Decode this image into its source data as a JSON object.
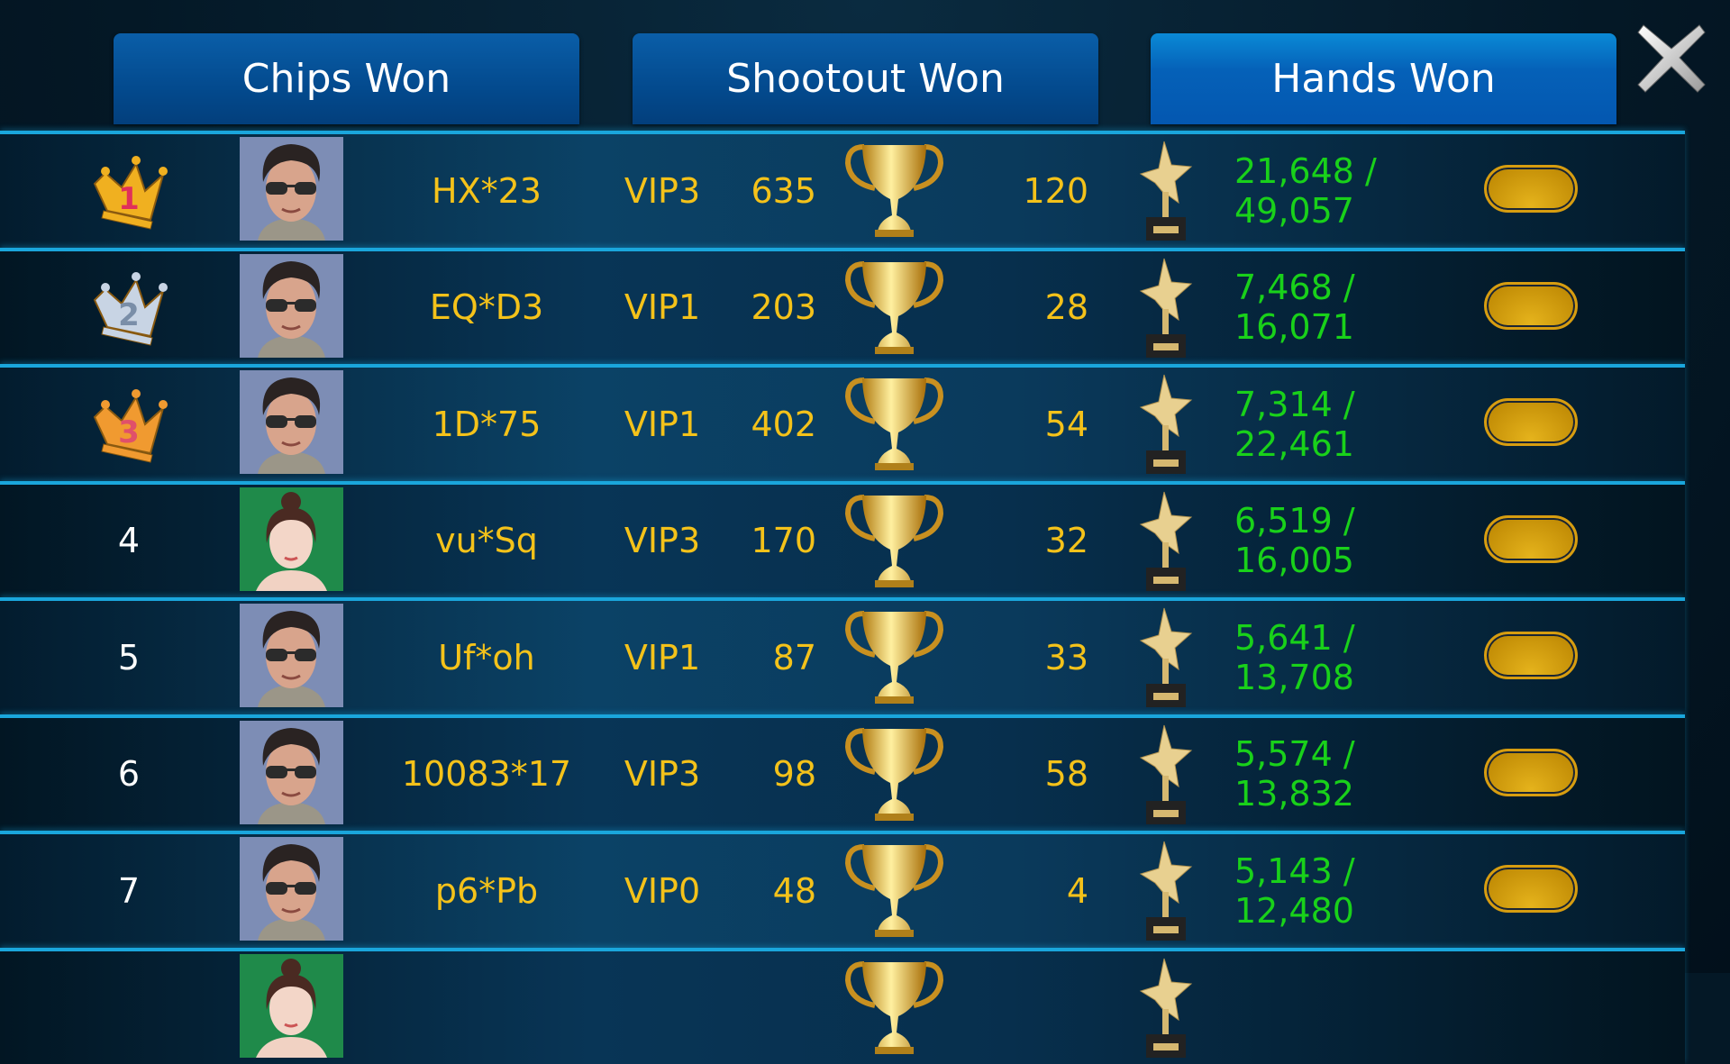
{
  "tabs": [
    {
      "label": "Chips Won",
      "active": false
    },
    {
      "label": "Shootout Won",
      "active": false
    },
    {
      "label": "Hands Won",
      "active": true
    }
  ],
  "close_icon": "close-x-icon",
  "colors": {
    "name": "#f4c21a",
    "chips": "#19d11a",
    "separator": "#1aa6dc",
    "active_tab": "#0561b8"
  },
  "rows": [
    {
      "rank": "1",
      "rank_icon": "gold-crown-1",
      "avatar": "male",
      "name": "HX*23",
      "vip": "VIP3",
      "shootout": "635",
      "hands": "120",
      "chips": "21,648 / 49,057"
    },
    {
      "rank": "2",
      "rank_icon": "silver-crown-2",
      "avatar": "male",
      "name": "EQ*D3",
      "vip": "VIP1",
      "shootout": "203",
      "hands": "28",
      "chips": "7,468 / 16,071"
    },
    {
      "rank": "3",
      "rank_icon": "bronze-crown-3",
      "avatar": "male",
      "name": "1D*75",
      "vip": "VIP1",
      "shootout": "402",
      "hands": "54",
      "chips": "7,314 / 22,461"
    },
    {
      "rank": "4",
      "avatar": "female",
      "name": "vu*Sq",
      "vip": "VIP3",
      "shootout": "170",
      "hands": "32",
      "chips": "6,519 / 16,005"
    },
    {
      "rank": "5",
      "avatar": "male",
      "name": "Uf*oh",
      "vip": "VIP1",
      "shootout": "87",
      "hands": "33",
      "chips": "5,641 / 13,708"
    },
    {
      "rank": "6",
      "avatar": "male",
      "name": "10083*17",
      "vip": "VIP3",
      "shootout": "98",
      "hands": "58",
      "chips": "5,574 / 13,832"
    },
    {
      "rank": "7",
      "avatar": "male",
      "name": "p6*Pb",
      "vip": "VIP0",
      "shootout": "48",
      "hands": "4",
      "chips": "5,143 / 12,480"
    },
    {
      "avatar": "female"
    }
  ]
}
